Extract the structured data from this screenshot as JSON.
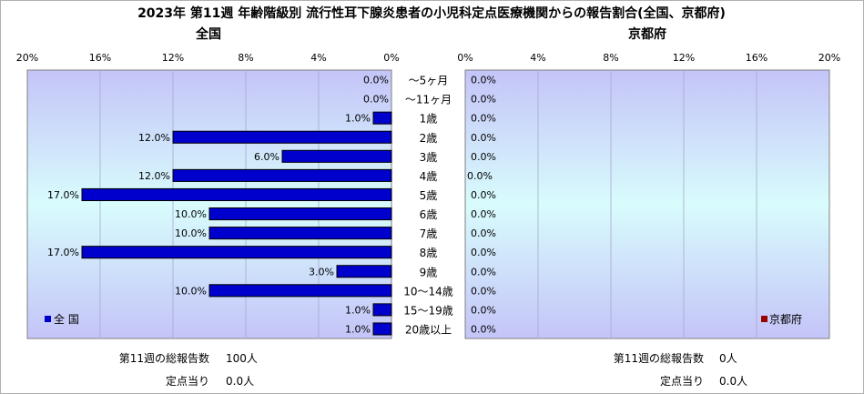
{
  "title": "2023年 第11週 年齢階級別 流行性耳下腺炎患者の小児科定点医療機関からの報告割合(全国、京都府)",
  "chart_data": [
    {
      "type": "bar",
      "orientation": "horizontal",
      "direction": "right-to-left",
      "title": "全国",
      "categories": [
        "～5ヶ月",
        "～11ヶ月",
        "1歳",
        "2歳",
        "3歳",
        "4歳",
        "5歳",
        "6歳",
        "7歳",
        "8歳",
        "9歳",
        "10～14歳",
        "15～19歳",
        "20歳以上"
      ],
      "series": [
        {
          "name": "全 国",
          "color": "#0000cc",
          "values": [
            0.0,
            0.0,
            1.0,
            12.0,
            6.0,
            12.0,
            17.0,
            10.0,
            10.0,
            17.0,
            3.0,
            10.0,
            1.0,
            1.0
          ],
          "labels": [
            "0.0%",
            "0.0%",
            "1.0%",
            "12.0%",
            "6.0%",
            "12.0%",
            "17.0%",
            "10.0%",
            "10.0%",
            "17.0%",
            "3.0%",
            "10.0%",
            "1.0%",
            "1.0%"
          ]
        }
      ],
      "xlim": [
        0,
        20
      ],
      "ticks": [
        0,
        4,
        8,
        12,
        16,
        20
      ],
      "tick_labels": [
        "0%",
        "4%",
        "8%",
        "12%",
        "16%",
        "20%"
      ],
      "legend": "bottom-left",
      "grid": true
    },
    {
      "type": "bar",
      "orientation": "horizontal",
      "direction": "left-to-right",
      "title": "京都府",
      "categories": [
        "～5ヶ月",
        "～11ヶ月",
        "1歳",
        "2歳",
        "3歳",
        "4歳",
        "5歳",
        "6歳",
        "7歳",
        "8歳",
        "9歳",
        "10～14歳",
        "15～19歳",
        "20歳以上"
      ],
      "series": [
        {
          "name": "京都府",
          "color": "#990000",
          "values": [
            0,
            0,
            0,
            0,
            0,
            0,
            0,
            0,
            0,
            0,
            0,
            0,
            0,
            0
          ],
          "labels": [
            "0.0%",
            "0.0%",
            "0.0%",
            "0.0%",
            "0.0%",
            "0.0%",
            "0.0%",
            "0.0%",
            "0.0%",
            "0.0%",
            "0.0%",
            "0.0%",
            "0.0%",
            "0.0%"
          ]
        }
      ],
      "xlim": [
        0,
        20
      ],
      "ticks": [
        0,
        4,
        8,
        12,
        16,
        20
      ],
      "tick_labels": [
        "0%",
        "4%",
        "8%",
        "12%",
        "16%",
        "20%"
      ],
      "legend": "bottom-right",
      "grid": true
    }
  ],
  "summary": {
    "national": {
      "total_label": "第11週の総報告数",
      "total_value": "100人",
      "per_label": "定点当り",
      "per_value": "0.0人"
    },
    "kyoto": {
      "total_label": "第11週の総報告数",
      "total_value": "0人",
      "per_label": "定点当り",
      "per_value": "0.0人"
    }
  }
}
